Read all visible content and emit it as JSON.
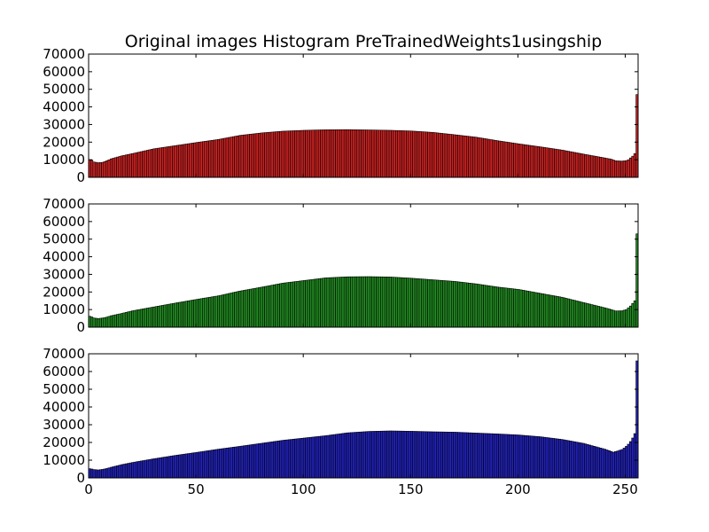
{
  "chart_data": {
    "type": "bar",
    "title": "Original images Histogram PreTrainedWeights1usingship",
    "xlabel": "",
    "ylabel": "",
    "xlim": [
      0,
      256
    ],
    "ylim": [
      0,
      70000
    ],
    "xticks": [
      "0",
      "50",
      "100",
      "150",
      "200",
      "250"
    ],
    "yticks": [
      "0",
      "10000",
      "20000",
      "30000",
      "40000",
      "50000",
      "60000",
      "70000"
    ],
    "legend": "none",
    "grid": false,
    "bin_width": 1,
    "panels": [
      {
        "channel": "red",
        "color": "#cc2222",
        "anchors": [
          [
            0,
            10000
          ],
          [
            1,
            9800
          ],
          [
            2,
            8700
          ],
          [
            4,
            8300
          ],
          [
            6,
            8500
          ],
          [
            8,
            9400
          ],
          [
            10,
            10500
          ],
          [
            15,
            12200
          ],
          [
            20,
            13500
          ],
          [
            30,
            16200
          ],
          [
            40,
            18000
          ],
          [
            50,
            19800
          ],
          [
            60,
            21500
          ],
          [
            70,
            23800
          ],
          [
            80,
            25200
          ],
          [
            90,
            26200
          ],
          [
            100,
            26700
          ],
          [
            110,
            27000
          ],
          [
            120,
            27100
          ],
          [
            130,
            26900
          ],
          [
            140,
            26700
          ],
          [
            150,
            26300
          ],
          [
            160,
            25500
          ],
          [
            170,
            24200
          ],
          [
            180,
            22800
          ],
          [
            190,
            20800
          ],
          [
            200,
            19000
          ],
          [
            210,
            17300
          ],
          [
            220,
            15500
          ],
          [
            230,
            13200
          ],
          [
            240,
            11000
          ],
          [
            243,
            10300
          ],
          [
            245,
            9400
          ],
          [
            248,
            9200
          ],
          [
            250,
            9500
          ],
          [
            251,
            10000
          ],
          [
            252,
            11000
          ],
          [
            253,
            12000
          ],
          [
            254,
            13500
          ],
          [
            255,
            47000
          ]
        ]
      },
      {
        "channel": "green",
        "color": "#228b22",
        "anchors": [
          [
            0,
            6200
          ],
          [
            1,
            5800
          ],
          [
            2,
            5200
          ],
          [
            4,
            4900
          ],
          [
            6,
            5200
          ],
          [
            8,
            5700
          ],
          [
            10,
            6500
          ],
          [
            15,
            7800
          ],
          [
            20,
            9300
          ],
          [
            30,
            11500
          ],
          [
            40,
            13700
          ],
          [
            50,
            15800
          ],
          [
            60,
            17800
          ],
          [
            70,
            20500
          ],
          [
            80,
            22700
          ],
          [
            90,
            25000
          ],
          [
            100,
            26500
          ],
          [
            110,
            28000
          ],
          [
            120,
            28600
          ],
          [
            130,
            28700
          ],
          [
            140,
            28500
          ],
          [
            150,
            27800
          ],
          [
            160,
            26900
          ],
          [
            170,
            26000
          ],
          [
            180,
            24600
          ],
          [
            190,
            22800
          ],
          [
            200,
            21400
          ],
          [
            210,
            19200
          ],
          [
            220,
            17000
          ],
          [
            230,
            14000
          ],
          [
            240,
            11000
          ],
          [
            243,
            10000
          ],
          [
            245,
            9200
          ],
          [
            248,
            9300
          ],
          [
            250,
            10000
          ],
          [
            251,
            11000
          ],
          [
            252,
            12000
          ],
          [
            253,
            13500
          ],
          [
            254,
            15000
          ],
          [
            255,
            53000
          ]
        ]
      },
      {
        "channel": "blue",
        "color": "#2222bb",
        "anchors": [
          [
            0,
            5200
          ],
          [
            1,
            5000
          ],
          [
            2,
            4700
          ],
          [
            4,
            4500
          ],
          [
            6,
            4800
          ],
          [
            8,
            5300
          ],
          [
            10,
            6000
          ],
          [
            15,
            7500
          ],
          [
            20,
            8700
          ],
          [
            30,
            10800
          ],
          [
            40,
            12700
          ],
          [
            50,
            14400
          ],
          [
            60,
            16200
          ],
          [
            70,
            17800
          ],
          [
            80,
            19500
          ],
          [
            90,
            21200
          ],
          [
            100,
            22500
          ],
          [
            110,
            23800
          ],
          [
            120,
            25400
          ],
          [
            130,
            26200
          ],
          [
            140,
            26500
          ],
          [
            150,
            26300
          ],
          [
            160,
            26000
          ],
          [
            170,
            25800
          ],
          [
            180,
            25300
          ],
          [
            190,
            24800
          ],
          [
            200,
            24200
          ],
          [
            210,
            23200
          ],
          [
            220,
            21700
          ],
          [
            230,
            19500
          ],
          [
            240,
            16200
          ],
          [
            244,
            14500
          ],
          [
            246,
            15200
          ],
          [
            248,
            16000
          ],
          [
            249,
            16800
          ],
          [
            250,
            17800
          ],
          [
            251,
            19000
          ],
          [
            252,
            20500
          ],
          [
            253,
            22500
          ],
          [
            254,
            25000
          ],
          [
            255,
            66000
          ]
        ]
      }
    ]
  }
}
